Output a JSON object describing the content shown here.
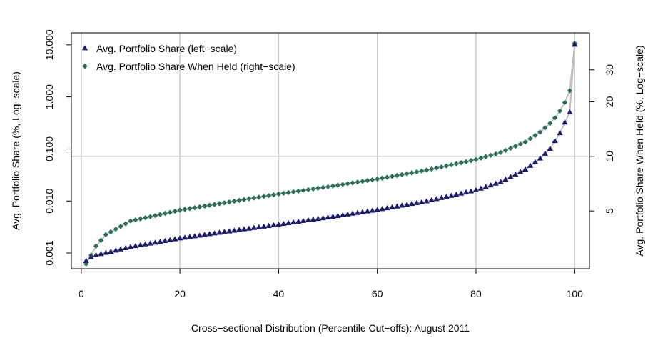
{
  "chart_data": {
    "type": "scatter",
    "xlabel": "Cross−sectional Distribution (Percentile Cut−offs): August 2011",
    "ylabel_left": "Avg. Portfolio Share (%, Log−scale)",
    "ylabel_right": "Avg. Portfolio Share When Held (%, Log−scale)",
    "xlim": [
      -2,
      103
    ],
    "ylim_left": [
      0.0005,
      17.0
    ],
    "ylim_right": [
      2.4,
      48
    ],
    "left_scale": "log",
    "right_scale": "log",
    "grid": true,
    "legend_position": "top-left",
    "x_ticks": [
      {
        "value": 0,
        "label": "0"
      },
      {
        "value": 20,
        "label": "20"
      },
      {
        "value": 40,
        "label": "40"
      },
      {
        "value": 60,
        "label": "60"
      },
      {
        "value": 80,
        "label": "80"
      },
      {
        "value": 100,
        "label": "100"
      }
    ],
    "y_left_ticks": [
      {
        "value": 0.001,
        "label": "0.001"
      },
      {
        "value": 0.01,
        "label": "0.010"
      },
      {
        "value": 0.1,
        "label": "0.100"
      },
      {
        "value": 1,
        "label": "1.000"
      },
      {
        "value": 10,
        "label": "10.000"
      }
    ],
    "y_right_ticks": [
      {
        "value": 5,
        "label": "5"
      },
      {
        "value": 10,
        "label": "10"
      },
      {
        "value": 20,
        "label": "20"
      },
      {
        "value": 30,
        "label": "30"
      }
    ],
    "series": [
      {
        "name": "Avg. Portfolio Share (left−scale)",
        "axis": "left",
        "marker": "triangle",
        "color": "#1b1b6b",
        "knots": [
          [
            1,
            0.0007
          ],
          [
            2,
            0.00082
          ],
          [
            3,
            0.0009
          ],
          [
            5,
            0.001
          ],
          [
            10,
            0.0013
          ],
          [
            20,
            0.0019
          ],
          [
            30,
            0.0026
          ],
          [
            40,
            0.0035
          ],
          [
            50,
            0.0048
          ],
          [
            60,
            0.0067
          ],
          [
            70,
            0.0098
          ],
          [
            80,
            0.016
          ],
          [
            85,
            0.023
          ],
          [
            90,
            0.04
          ],
          [
            93,
            0.065
          ],
          [
            95,
            0.1
          ],
          [
            97,
            0.2
          ],
          [
            98,
            0.32
          ],
          [
            99,
            0.5
          ],
          [
            100,
            10
          ]
        ]
      },
      {
        "name": "Avg. Portfolio Share When Held (right−scale)",
        "axis": "right",
        "marker": "diamond",
        "color": "#2d7059",
        "knots": [
          [
            1,
            2.55
          ],
          [
            2,
            2.85
          ],
          [
            3,
            3.2
          ],
          [
            5,
            3.7
          ],
          [
            10,
            4.4
          ],
          [
            20,
            5.05
          ],
          [
            30,
            5.6
          ],
          [
            40,
            6.2
          ],
          [
            50,
            6.8
          ],
          [
            60,
            7.5
          ],
          [
            70,
            8.4
          ],
          [
            80,
            9.6
          ],
          [
            85,
            10.5
          ],
          [
            90,
            12.0
          ],
          [
            93,
            13.6
          ],
          [
            95,
            15.2
          ],
          [
            96,
            16.3
          ],
          [
            97,
            17.8
          ],
          [
            98,
            19.8
          ],
          [
            99,
            23.0
          ],
          [
            100,
            42.0
          ]
        ]
      }
    ]
  },
  "legend": {
    "items": [
      {
        "label": "Avg. Portfolio Share (left−scale)",
        "marker": "triangle",
        "color": "#1b1b6b"
      },
      {
        "label": "Avg. Portfolio Share When Held (right−scale)",
        "marker": "diamond",
        "color": "#2d7059"
      }
    ]
  },
  "colors": {
    "grid": "#cccccc",
    "connector_line": "#bfbfbf",
    "axis": "#000000"
  }
}
